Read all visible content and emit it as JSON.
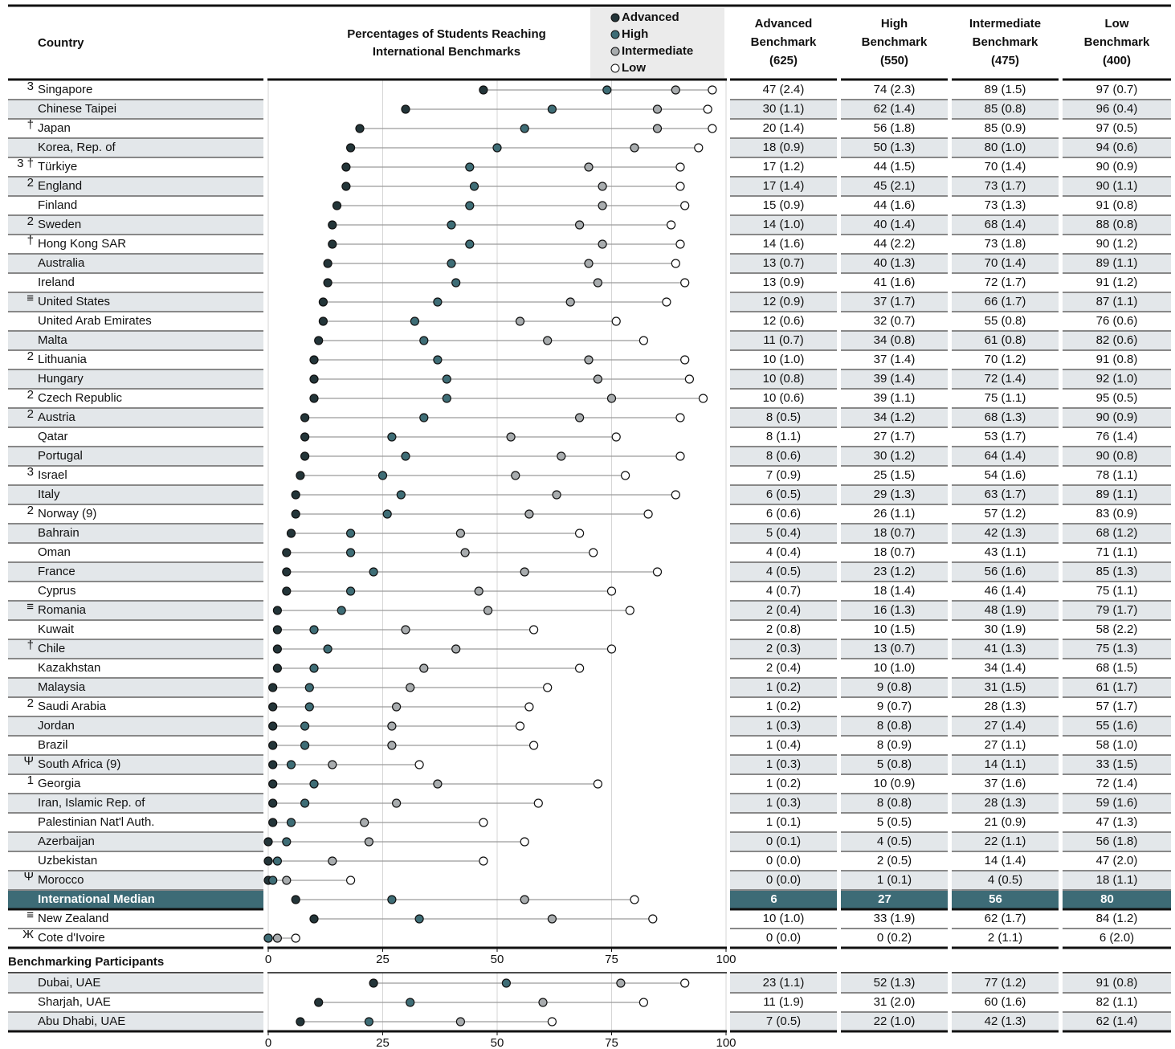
{
  "header": {
    "country": "Country",
    "chart_title": [
      "Percentages of Students Reaching",
      "International Benchmarks"
    ],
    "columns": [
      [
        "Advanced",
        "Benchmark",
        "(625)"
      ],
      [
        "High",
        "Benchmark",
        "(550)"
      ],
      [
        "Intermediate",
        "Benchmark",
        "(475)"
      ],
      [
        "Low",
        "Benchmark",
        "(400)"
      ]
    ]
  },
  "chart_data": [
    {
      "type": "dot",
      "xlim": [
        0,
        100
      ],
      "grid": true,
      "categories": [
        "Singapore",
        "Chinese Taipei",
        "Japan",
        "Korea, Rep. of",
        "Türkiye",
        "England",
        "Finland",
        "Sweden",
        "Hong Kong SAR",
        "Australia",
        "Ireland",
        "United States",
        "United Arab Emirates",
        "Malta",
        "Lithuania",
        "Hungary",
        "Czech Republic",
        "Austria",
        "Qatar",
        "Portugal",
        "Israel",
        "Italy",
        "Norway (9)",
        "Bahrain",
        "Oman",
        "France",
        "Cyprus",
        "Romania",
        "Kuwait",
        "Chile",
        "Kazakhstan",
        "Malaysia",
        "Saudi Arabia",
        "Jordan",
        "Brazil",
        "South Africa (9)",
        "Georgia",
        "Iran, Islamic Rep. of",
        "Palestinian Nat'l Auth.",
        "Azerbaijan",
        "Uzbekistan",
        "Morocco"
      ],
      "notes": [
        "3",
        null,
        "†",
        null,
        "3 †",
        "2",
        null,
        "2",
        "†",
        null,
        null,
        "≡",
        null,
        null,
        "2",
        null,
        "2",
        "2",
        null,
        null,
        "3",
        null,
        "2",
        null,
        null,
        null,
        null,
        "≡",
        null,
        "†",
        null,
        null,
        "2",
        null,
        null,
        "Ψ",
        "1",
        null,
        null,
        null,
        null,
        "Ψ"
      ],
      "series": [
        {
          "name": "Advanced",
          "color": "#233539",
          "values": [
            47,
            30,
            20,
            18,
            17,
            17,
            15,
            14,
            14,
            13,
            13,
            12,
            12,
            11,
            10,
            10,
            10,
            8,
            8,
            8,
            7,
            6,
            6,
            5,
            4,
            4,
            4,
            2,
            2,
            2,
            2,
            1,
            1,
            1,
            1,
            1,
            1,
            1,
            1,
            0,
            0,
            0
          ],
          "value_labels": [
            "47 (2.4)",
            "30 (1.1)",
            "20 (1.4)",
            "18 (0.9)",
            "17 (1.2)",
            "17 (1.4)",
            "15 (0.9)",
            "14 (1.0)",
            "14 (1.6)",
            "13 (0.7)",
            "13 (0.9)",
            "12 (0.9)",
            "12 (0.6)",
            "11 (0.7)",
            "10 (1.0)",
            "10 (0.8)",
            "10 (0.6)",
            "8 (0.5)",
            "8 (1.1)",
            "8 (0.6)",
            "7 (0.9)",
            "6 (0.5)",
            "6 (0.6)",
            "5 (0.4)",
            "4 (0.4)",
            "4 (0.5)",
            "4 (0.7)",
            "2 (0.4)",
            "2 (0.8)",
            "2 (0.3)",
            "2 (0.4)",
            "1 (0.2)",
            "1 (0.2)",
            "1 (0.3)",
            "1 (0.4)",
            "1 (0.3)",
            "1 (0.2)",
            "1 (0.3)",
            "1 (0.1)",
            "0 (0.1)",
            "0 (0.0)",
            "0 (0.0)"
          ]
        },
        {
          "name": "High",
          "color": "#3e6d76",
          "values": [
            74,
            62,
            56,
            50,
            44,
            45,
            44,
            40,
            44,
            40,
            41,
            37,
            32,
            34,
            37,
            39,
            39,
            34,
            27,
            30,
            25,
            29,
            26,
            18,
            18,
            23,
            18,
            16,
            10,
            13,
            10,
            9,
            9,
            8,
            8,
            5,
            10,
            8,
            5,
            4,
            2,
            1
          ],
          "value_labels": [
            "74 (2.3)",
            "62 (1.4)",
            "56 (1.8)",
            "50 (1.3)",
            "44 (1.5)",
            "45 (2.1)",
            "44 (1.6)",
            "40 (1.4)",
            "44 (2.2)",
            "40 (1.3)",
            "41 (1.6)",
            "37 (1.7)",
            "32 (0.7)",
            "34 (0.8)",
            "37 (1.4)",
            "39 (1.4)",
            "39 (1.1)",
            "34 (1.2)",
            "27 (1.7)",
            "30 (1.2)",
            "25 (1.5)",
            "29 (1.3)",
            "26 (1.1)",
            "18 (0.7)",
            "18 (0.7)",
            "23 (1.2)",
            "18 (1.4)",
            "16 (1.3)",
            "10 (1.5)",
            "13 (0.7)",
            "10 (1.0)",
            "9 (0.8)",
            "9 (0.7)",
            "8 (0.8)",
            "8 (0.9)",
            "5 (0.8)",
            "10 (0.9)",
            "8 (0.8)",
            "5 (0.5)",
            "4 (0.5)",
            "2 (0.5)",
            "1 (0.1)"
          ]
        },
        {
          "name": "Intermediate",
          "color": "#a8acae",
          "values": [
            89,
            85,
            85,
            80,
            70,
            73,
            73,
            68,
            73,
            70,
            72,
            66,
            55,
            61,
            70,
            72,
            75,
            68,
            53,
            64,
            54,
            63,
            57,
            42,
            43,
            56,
            46,
            48,
            30,
            41,
            34,
            31,
            28,
            27,
            27,
            14,
            37,
            28,
            21,
            22,
            14,
            4
          ],
          "value_labels": [
            "89 (1.5)",
            "85 (0.8)",
            "85 (0.9)",
            "80 (1.0)",
            "70 (1.4)",
            "73 (1.7)",
            "73 (1.3)",
            "68 (1.4)",
            "73 (1.8)",
            "70 (1.4)",
            "72 (1.7)",
            "66 (1.7)",
            "55 (0.8)",
            "61 (0.8)",
            "70 (1.2)",
            "72 (1.4)",
            "75 (1.1)",
            "68 (1.3)",
            "53 (1.7)",
            "64 (1.4)",
            "54 (1.6)",
            "63 (1.7)",
            "57 (1.2)",
            "42 (1.3)",
            "43 (1.1)",
            "56 (1.6)",
            "46 (1.4)",
            "48 (1.9)",
            "30 (1.9)",
            "41 (1.3)",
            "34 (1.4)",
            "31 (1.5)",
            "28 (1.3)",
            "27 (1.4)",
            "27 (1.1)",
            "14 (1.1)",
            "37 (1.6)",
            "28 (1.3)",
            "21 (0.9)",
            "22 (1.1)",
            "14 (1.4)",
            "4 (0.5)"
          ]
        },
        {
          "name": "Low",
          "color": "#ffffff",
          "values": [
            97,
            96,
            97,
            94,
            90,
            90,
            91,
            88,
            90,
            89,
            91,
            87,
            76,
            82,
            91,
            92,
            95,
            90,
            76,
            90,
            78,
            89,
            83,
            68,
            71,
            85,
            75,
            79,
            58,
            75,
            68,
            61,
            57,
            55,
            58,
            33,
            72,
            59,
            47,
            56,
            47,
            18
          ],
          "value_labels": [
            "97 (0.7)",
            "96 (0.4)",
            "97 (0.5)",
            "94 (0.6)",
            "90 (0.9)",
            "90 (1.1)",
            "91 (0.8)",
            "88 (0.8)",
            "90 (1.2)",
            "89 (1.1)",
            "91 (1.2)",
            "87 (1.1)",
            "76 (0.6)",
            "82 (0.6)",
            "91 (0.8)",
            "92 (1.0)",
            "95 (0.5)",
            "90 (0.9)",
            "76 (1.4)",
            "90 (0.8)",
            "78 (1.1)",
            "89 (1.1)",
            "83 (0.9)",
            "68 (1.2)",
            "71 (1.1)",
            "85 (1.3)",
            "75 (1.1)",
            "79 (1.7)",
            "58 (2.2)",
            "75 (1.3)",
            "68 (1.5)",
            "61 (1.7)",
            "57 (1.7)",
            "55 (1.6)",
            "58 (1.0)",
            "33 (1.5)",
            "72 (1.4)",
            "59 (1.6)",
            "47 (1.3)",
            "56 (1.8)",
            "47 (2.0)",
            "18 (1.1)"
          ]
        }
      ]
    },
    {
      "type": "dot",
      "xlim": [
        0,
        100
      ],
      "grid": true,
      "highlight": "#3d6b76",
      "categories": [
        "International Median"
      ],
      "series": [
        {
          "color": "#233539",
          "values": [
            6
          ]
        },
        {
          "color": "#3e6d76",
          "values": [
            27
          ]
        },
        {
          "color": "#a8acae",
          "values": [
            56
          ]
        },
        {
          "color": "#ffffff",
          "values": [
            80
          ]
        }
      ]
    },
    {
      "type": "dot",
      "xlim": [
        0,
        100
      ],
      "xticks": [
        0,
        25,
        50,
        75,
        100
      ],
      "grid": true,
      "categories": [
        "New Zealand",
        "Cote d'Ivoire"
      ],
      "notes": [
        "≡",
        "Ж"
      ],
      "series": [
        {
          "color": "#233539",
          "values": [
            10,
            0
          ],
          "value_labels": [
            "10 (1.0)",
            "0 (0.0)"
          ]
        },
        {
          "color": "#3e6d76",
          "values": [
            33,
            0
          ],
          "value_labels": [
            "33 (1.9)",
            "0 (0.2)"
          ]
        },
        {
          "color": "#a8acae",
          "values": [
            62,
            2
          ],
          "value_labels": [
            "62 (1.7)",
            "2 (1.1)"
          ]
        },
        {
          "color": "#ffffff",
          "values": [
            84,
            6
          ],
          "value_labels": [
            "84 (1.2)",
            "6 (2.0)"
          ]
        }
      ]
    },
    {
      "type": "dot",
      "title": "Benchmarking Participants",
      "xlim": [
        0,
        100
      ],
      "xticks": [
        0,
        25,
        50,
        75,
        100
      ],
      "grid": true,
      "categories": [
        "Dubai, UAE",
        "Sharjah, UAE",
        "Abu Dhabi, UAE"
      ],
      "series": [
        {
          "color": "#233539",
          "values": [
            23,
            11,
            7
          ],
          "value_labels": [
            "23 (1.1)",
            "11 (1.9)",
            "7 (0.5)"
          ]
        },
        {
          "color": "#3e6d76",
          "values": [
            52,
            31,
            22
          ],
          "value_labels": [
            "52 (1.3)",
            "31 (2.0)",
            "22 (1.0)"
          ]
        },
        {
          "color": "#a8acae",
          "values": [
            77,
            60,
            42
          ],
          "value_labels": [
            "77 (1.2)",
            "60 (1.6)",
            "42 (1.3)"
          ]
        },
        {
          "color": "#ffffff",
          "values": [
            91,
            82,
            62
          ],
          "value_labels": [
            "91 (0.8)",
            "82 (1.1)",
            "62 (1.4)"
          ]
        }
      ]
    }
  ]
}
